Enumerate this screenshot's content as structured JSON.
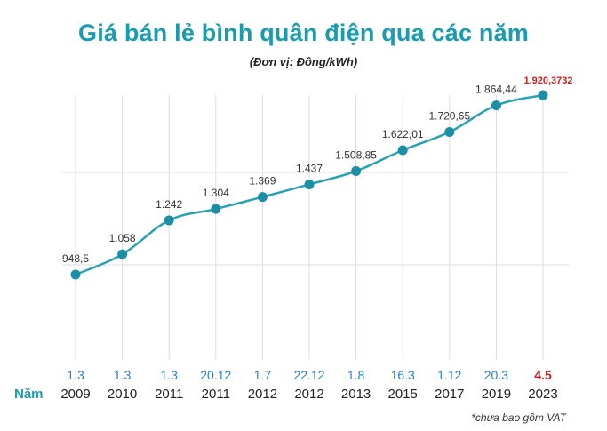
{
  "title": "Giá bán lẻ bình quân điện qua các năm",
  "subtitle": "(Đơn vị: Đồng/kWh)",
  "note": "*chưa bao gồm VAT",
  "colors": {
    "title": "#1a9bb0",
    "line": "#2aa0b4",
    "point": "#1b8fa6",
    "date": "#2a7fd0",
    "highlight": "#cc1f1f",
    "grid": "#dddddd"
  },
  "chart_data": {
    "type": "line",
    "row_label": "Năm",
    "points": [
      {
        "date": "1.3",
        "year": "2009",
        "value": 948.5,
        "label": "948,5"
      },
      {
        "date": "1.3",
        "year": "2010",
        "value": 1058,
        "label": "1.058"
      },
      {
        "date": "1.3",
        "year": "2011",
        "value": 1242,
        "label": "1.242"
      },
      {
        "date": "20.12",
        "year": "2011",
        "value": 1304,
        "label": "1.304"
      },
      {
        "date": "1.7",
        "year": "2012",
        "value": 1369,
        "label": "1.369"
      },
      {
        "date": "22.12",
        "year": "2012",
        "value": 1437,
        "label": "1.437"
      },
      {
        "date": "1.8",
        "year": "2013",
        "value": 1508.85,
        "label": "1.508,85"
      },
      {
        "date": "16.3",
        "year": "2015",
        "value": 1622.01,
        "label": "1.622,01"
      },
      {
        "date": "1.12",
        "year": "2017",
        "value": 1720.65,
        "label": "1.720,65"
      },
      {
        "date": "20.3",
        "year": "2019",
        "value": 1864.44,
        "label": "1.864,44"
      },
      {
        "date": "4.5",
        "year": "2023",
        "value": 1920.3732,
        "label": "1.920,3732",
        "highlight": true
      }
    ],
    "ylim": [
      500,
      2000
    ],
    "grid": "horizontal",
    "xlabel": "",
    "ylabel": ""
  }
}
